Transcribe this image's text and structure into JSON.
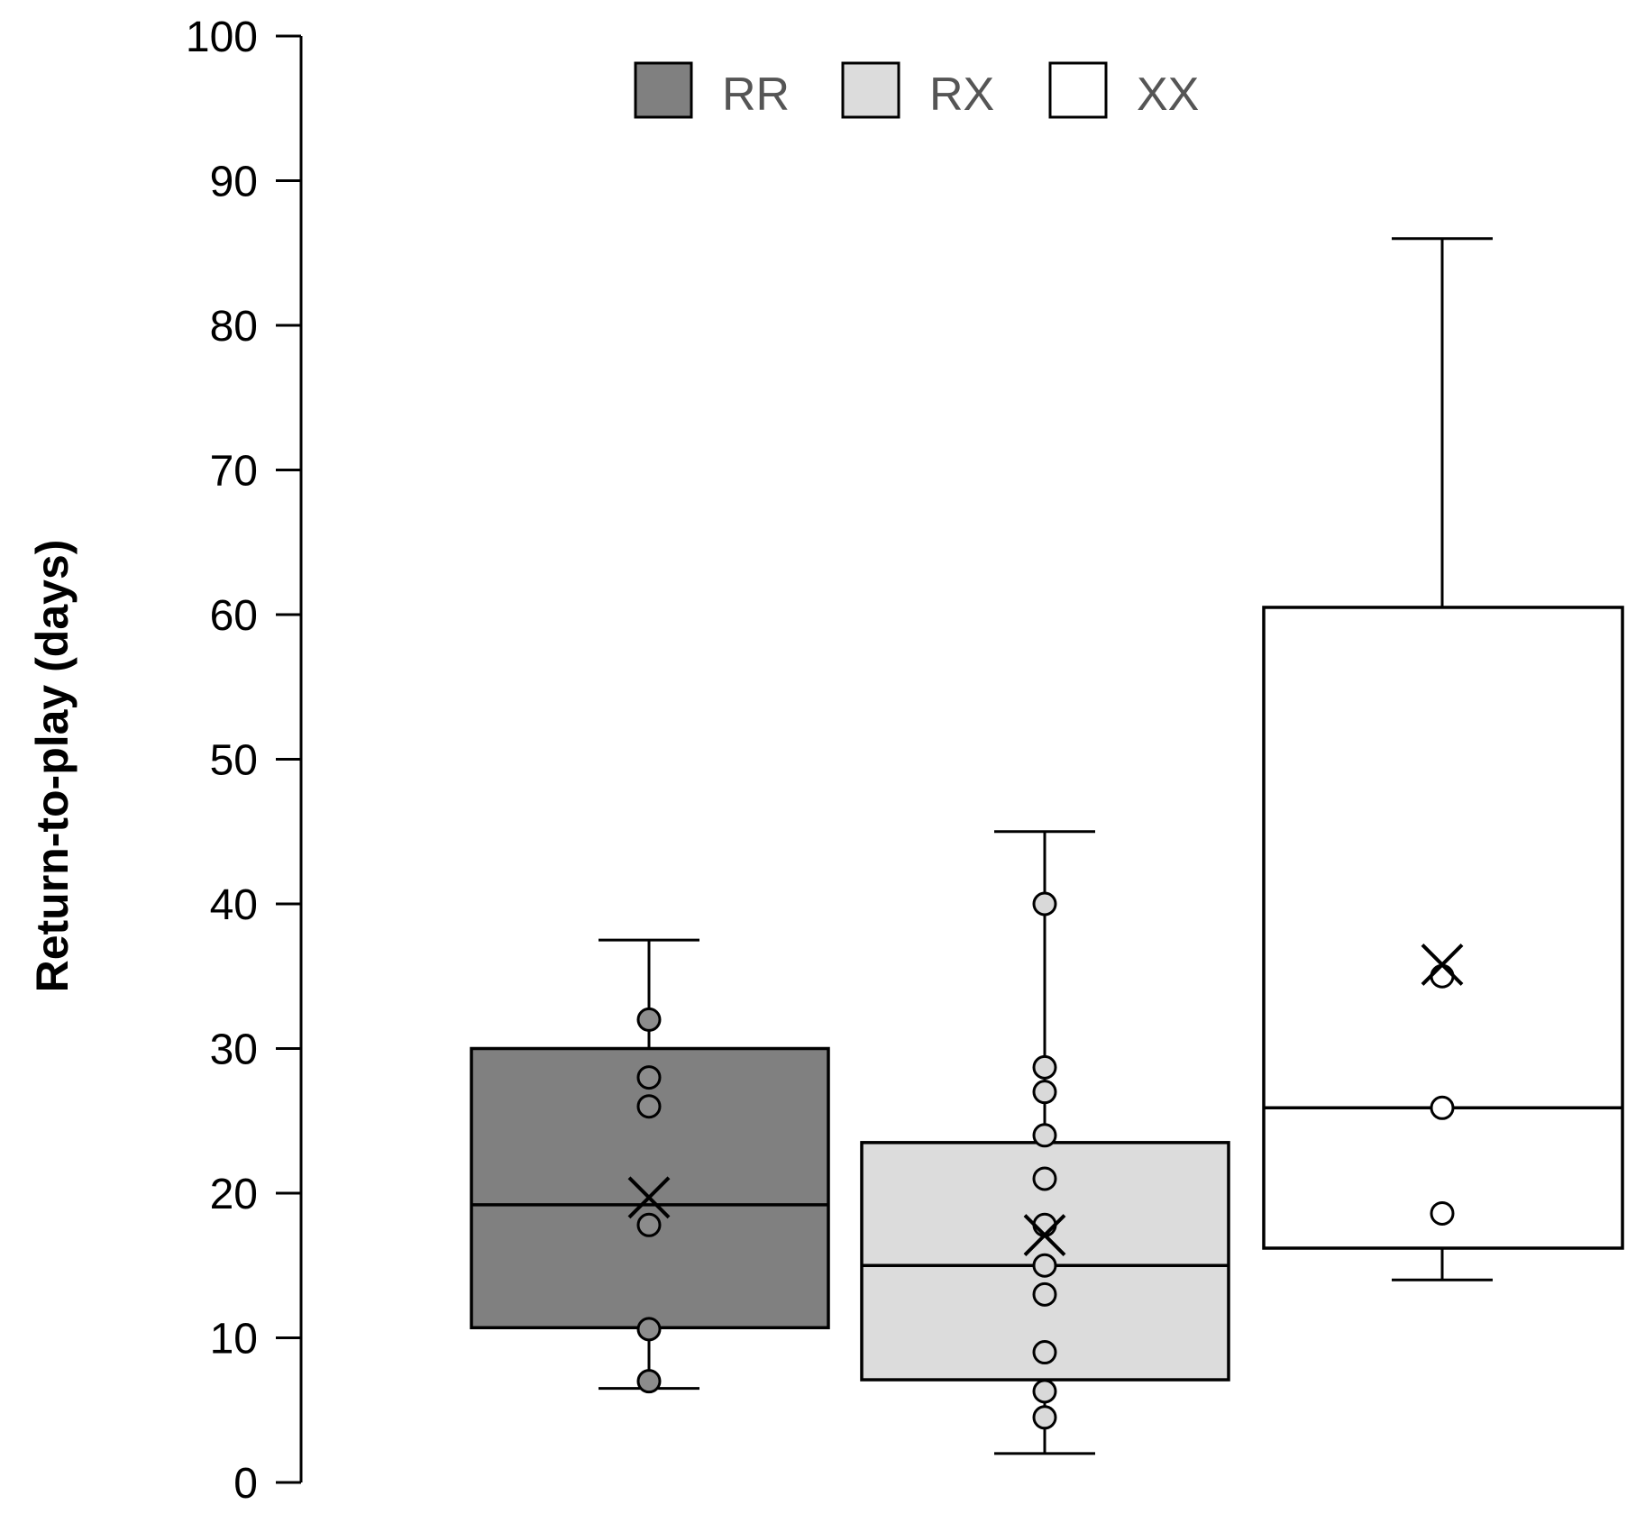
{
  "chart_data": {
    "type": "box",
    "title": "",
    "xlabel": "",
    "ylabel": "Return-to-play (days)",
    "ylim": [
      0,
      100
    ],
    "yticks": [
      0,
      10,
      20,
      30,
      40,
      50,
      60,
      70,
      80,
      90,
      100
    ],
    "grid": false,
    "legend_position": "top-center",
    "series": [
      {
        "name": "RR",
        "color": "#808080",
        "point_fill": "#8c8c8c",
        "whisker_low": 6.5,
        "q1": 10.7,
        "median": 19.2,
        "q3": 30,
        "whisker_high": 37.5,
        "mean": 19.7,
        "points": [
          32,
          28,
          26,
          17.8,
          10.6,
          7
        ]
      },
      {
        "name": "RX",
        "color": "#dcdcdc",
        "point_fill": "#d9d9d9",
        "whisker_low": 2,
        "q1": 7.1,
        "median": 15,
        "q3": 23.5,
        "whisker_high": 45,
        "mean": 17.1,
        "points": [
          40,
          28.7,
          27,
          24,
          21,
          17.8,
          15,
          13,
          9,
          6.3,
          4.5
        ]
      },
      {
        "name": "XX",
        "color": "#ffffff",
        "point_fill": "#ffffff",
        "whisker_low": 14,
        "q1": 16.2,
        "median": 25.9,
        "q3": 60.5,
        "whisker_high": 86,
        "mean": 35.8,
        "points": [
          35,
          25.9,
          18.6
        ]
      }
    ]
  }
}
